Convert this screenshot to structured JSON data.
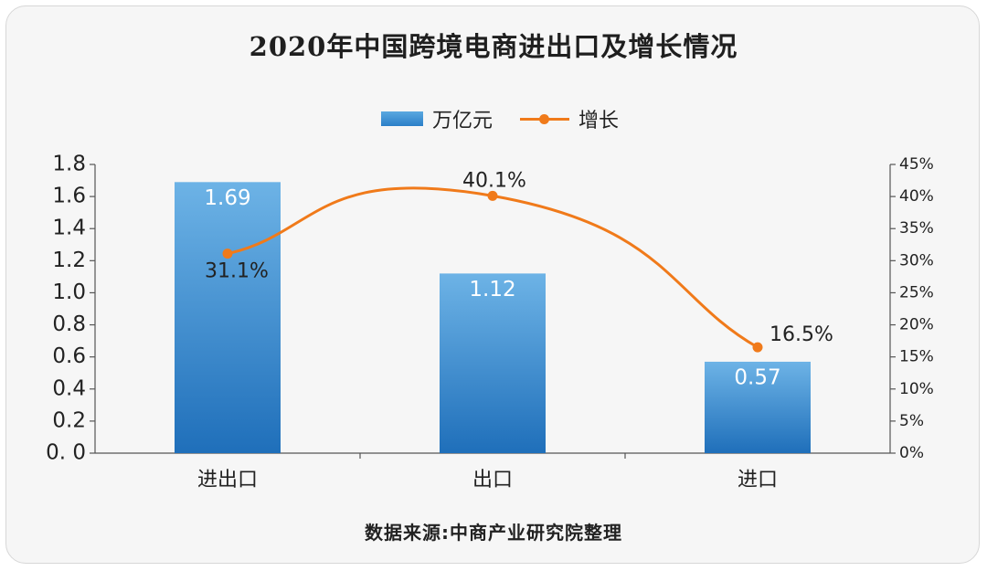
{
  "title": "2020年中国跨境电商进出口及增长情况",
  "source": "数据来源:中商产业研究院整理",
  "legend": [
    {
      "label": "万亿元",
      "kind": "bar",
      "color": "#2a7fc8"
    },
    {
      "label": "增长",
      "kind": "line",
      "color": "#f07a1a"
    }
  ],
  "chart_data": {
    "type": "bar",
    "categories": [
      "进出口",
      "出口",
      "进口"
    ],
    "series": [
      {
        "name": "万亿元",
        "type": "bar",
        "axis": "left",
        "values": [
          1.69,
          1.12,
          0.57
        ],
        "labels": [
          "1.69",
          "1.12",
          "0.57"
        ],
        "color": "#2a7fc8"
      },
      {
        "name": "增长",
        "type": "line",
        "axis": "right",
        "values": [
          31.1,
          40.1,
          16.5
        ],
        "labels": [
          "31.1%",
          "40.1%",
          "16.5%"
        ],
        "color": "#f07a1a"
      }
    ],
    "y_left": {
      "min": 0,
      "max": 1.8,
      "step": 0.2,
      "tick_labels": [
        "0. 0",
        "0.2",
        "0.4",
        "0.6",
        "0.8",
        "1.0",
        "1.2",
        "1.4",
        "1.6",
        "1.8"
      ]
    },
    "y_right": {
      "min": 0,
      "max": 45,
      "step": 5,
      "tick_labels": [
        "0%",
        "5%",
        "10%",
        "15%",
        "20%",
        "25%",
        "30%",
        "35%",
        "40%",
        "45%"
      ]
    },
    "grid": false,
    "legend_position": "top-center"
  }
}
